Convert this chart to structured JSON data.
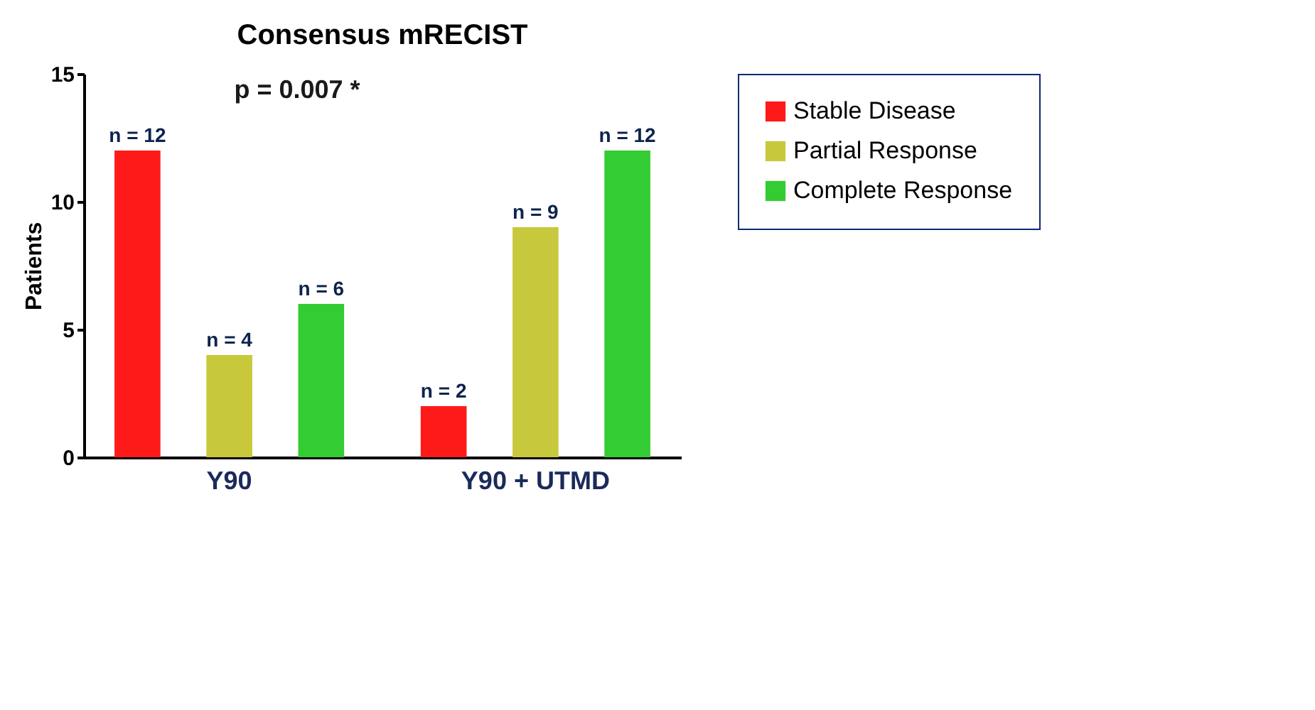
{
  "chart_data": {
    "type": "bar",
    "title": "Consensus mRECIST",
    "ylabel": "Patients",
    "categories": [
      "Y90",
      "Y90 + UTMD"
    ],
    "series": [
      {
        "name": "Stable Disease",
        "color": "#ff1a1a",
        "values": [
          12,
          2
        ],
        "value_labels": [
          "n = 12",
          "n = 2"
        ]
      },
      {
        "name": "Partial Response",
        "color": "#c8c83c",
        "values": [
          4,
          9
        ],
        "value_labels": [
          "n = 4",
          "n = 9"
        ]
      },
      {
        "name": "Complete Response",
        "color": "#33cc33",
        "values": [
          6,
          12
        ],
        "value_labels": [
          "n = 6",
          "n = 12"
        ]
      }
    ],
    "ylim": [
      0,
      15
    ],
    "yticks": [
      0,
      5,
      10,
      15
    ],
    "grid": false,
    "legend": "top right",
    "annotations": [
      "p = 0.007 *"
    ]
  }
}
